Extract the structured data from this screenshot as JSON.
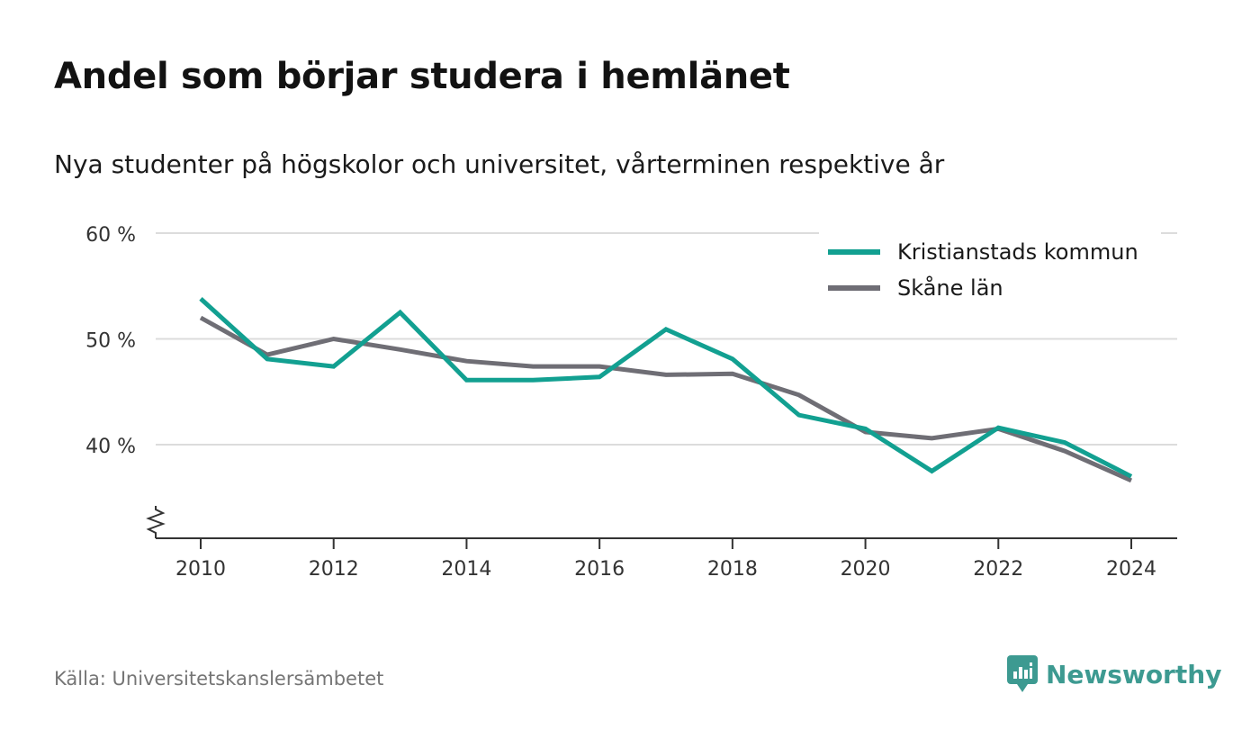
{
  "title": "Andel som börjar studera i hemlänet",
  "subtitle": "Nya studenter på högskolor och universitet, vårterminen respektive år",
  "source": "Källa: Universitetskanslersämbetet",
  "brand": {
    "name": "Newsworthy",
    "icon": "newsworthy-logo-icon",
    "color": "#3d9a91"
  },
  "chart_data": {
    "type": "line",
    "x": [
      2010,
      2011,
      2012,
      2013,
      2014,
      2015,
      2016,
      2017,
      2018,
      2019,
      2020,
      2021,
      2022,
      2023,
      2024
    ],
    "x_ticks": [
      "2010",
      "2012",
      "2014",
      "2016",
      "2018",
      "2020",
      "2022",
      "2024"
    ],
    "y_ticks": [
      "40 %",
      "50 %",
      "60 %"
    ],
    "ylim": [
      31,
      60
    ],
    "y_axis_break": true,
    "grid": true,
    "legend_position": "top-right",
    "series": [
      {
        "name": "Kristianstads kommun",
        "color": "#12a091",
        "values": [
          53.8,
          48.1,
          47.4,
          52.5,
          46.1,
          46.1,
          46.4,
          50.9,
          48.1,
          42.8,
          41.5,
          37.5,
          41.6,
          40.2,
          37.0
        ]
      },
      {
        "name": "Skåne län",
        "color": "#6f6e75",
        "values": [
          52.0,
          48.5,
          50.0,
          49.0,
          47.9,
          47.4,
          47.4,
          46.6,
          46.7,
          44.7,
          41.2,
          40.6,
          41.5,
          39.4,
          36.6
        ]
      }
    ]
  }
}
